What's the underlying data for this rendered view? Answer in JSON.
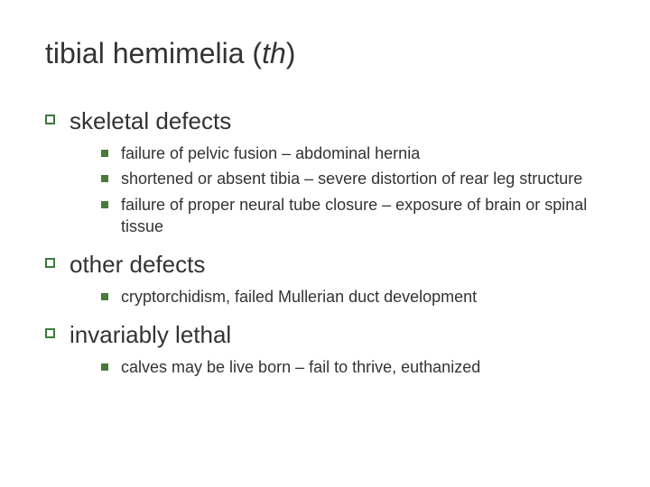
{
  "colors": {
    "background": "#ffffff",
    "text": "#333333",
    "bullet_l1_border": "#3c7a3c",
    "bullet_l2_fill": "#4a7a3a"
  },
  "typography": {
    "title_fontsize": 32,
    "l1_fontsize": 26,
    "l2_fontsize": 18,
    "font_family": "Verdana"
  },
  "title": {
    "main": "tibial hemimelia (",
    "italic": "th",
    "close": ")"
  },
  "sections": [
    {
      "heading": "skeletal defects",
      "items": [
        "failure of pelvic fusion – abdominal hernia",
        "shortened or absent tibia – severe distortion of rear leg structure",
        "failure of proper neural tube closure – exposure of brain or spinal tissue"
      ]
    },
    {
      "heading": "other defects",
      "items": [
        "cryptorchidism, failed Mullerian duct development"
      ]
    },
    {
      "heading": "invariably lethal",
      "items": [
        "calves may be live born – fail to thrive, euthanized"
      ]
    }
  ]
}
